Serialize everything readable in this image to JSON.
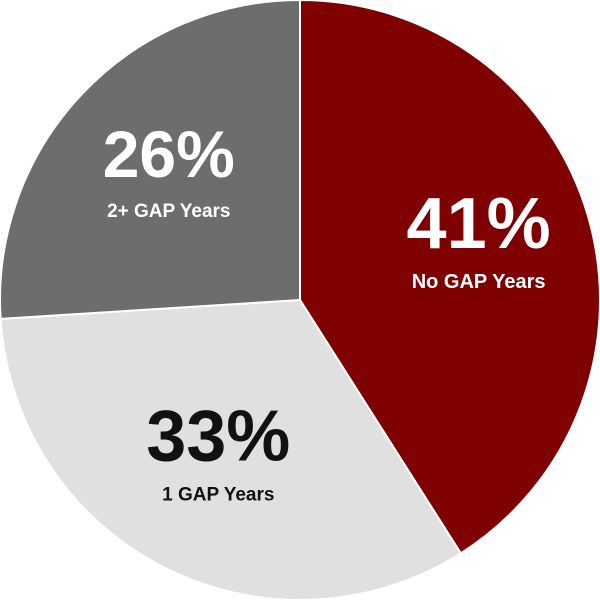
{
  "chart_data": {
    "type": "pie",
    "title": "",
    "slices": [
      {
        "label": "No GAP Years",
        "value": 41,
        "display": "41%",
        "color": "#7f0000",
        "text_color": "#ffffff"
      },
      {
        "label": "1 GAP Years",
        "value": 33,
        "display": "33%",
        "color": "#e0e0e0",
        "text_color": "#111111"
      },
      {
        "label": "2+ GAP Years",
        "value": 26,
        "display": "26%",
        "color": "#6d6d6d",
        "text_color": "#ffffff"
      }
    ],
    "start": "12 o'clock",
    "direction": "clockwise",
    "legend": "none (labels inside slices)"
  }
}
